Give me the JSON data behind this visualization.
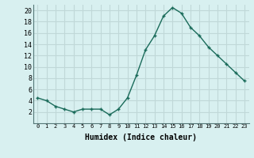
{
  "x": [
    0,
    1,
    2,
    3,
    4,
    5,
    6,
    7,
    8,
    9,
    10,
    11,
    12,
    13,
    14,
    15,
    16,
    17,
    18,
    19,
    20,
    21,
    22,
    23
  ],
  "y": [
    4.5,
    4.0,
    3.0,
    2.5,
    2.0,
    2.5,
    2.5,
    2.5,
    1.5,
    2.5,
    4.5,
    8.5,
    13.0,
    15.5,
    19.0,
    20.5,
    19.5,
    17.0,
    15.5,
    13.5,
    12.0,
    10.5,
    9.0,
    7.5
  ],
  "xlabel": "Humidex (Indice chaleur)",
  "xlim": [
    -0.5,
    23.5
  ],
  "ylim": [
    0,
    21
  ],
  "yticks": [
    2,
    4,
    6,
    8,
    10,
    12,
    14,
    16,
    18,
    20
  ],
  "xticks": [
    0,
    1,
    2,
    3,
    4,
    5,
    6,
    7,
    8,
    9,
    10,
    11,
    12,
    13,
    14,
    15,
    16,
    17,
    18,
    19,
    20,
    21,
    22,
    23
  ],
  "xtick_labels": [
    "0",
    "1",
    "2",
    "3",
    "4",
    "5",
    "6",
    "7",
    "8",
    "9",
    "10",
    "11",
    "12",
    "13",
    "14",
    "15",
    "16",
    "17",
    "18",
    "19",
    "20",
    "21",
    "22",
    "23"
  ],
  "line_color": "#1a6b5a",
  "marker": "+",
  "bg_color": "#d8f0f0",
  "grid_color": "#c0d8d8"
}
